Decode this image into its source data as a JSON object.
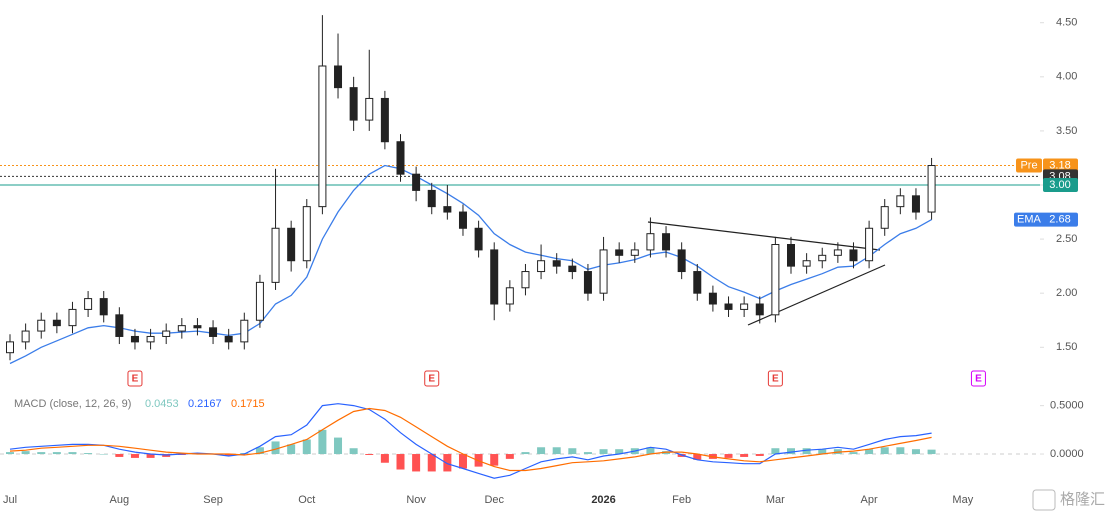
{
  "chart_data": [
    {
      "type": "candlestick",
      "categories": [
        "Jul",
        null,
        null,
        null,
        null,
        null,
        null,
        "Aug",
        null,
        null,
        null,
        null,
        null,
        "Sep",
        null,
        null,
        null,
        null,
        null,
        "Oct",
        null,
        null,
        null,
        null,
        null,
        null,
        "Nov",
        null,
        null,
        null,
        null,
        "Dec",
        null,
        null,
        null,
        null,
        null,
        null,
        "2026",
        null,
        null,
        null,
        null,
        "Feb",
        null,
        null,
        null,
        null,
        null,
        "Mar",
        null,
        null,
        null,
        null,
        null,
        "Apr",
        null,
        null,
        null,
        null,
        null,
        "May",
        null
      ],
      "open": [
        1.45,
        1.55,
        1.65,
        1.75,
        1.7,
        1.85,
        1.95,
        1.8,
        1.6,
        1.55,
        1.6,
        1.65,
        1.7,
        1.68,
        1.6,
        1.55,
        1.75,
        2.1,
        2.6,
        2.3,
        2.8,
        4.1,
        3.9,
        3.6,
        3.8,
        3.4,
        3.1,
        2.95,
        2.8,
        2.75,
        2.6,
        2.4,
        1.9,
        2.05,
        2.2,
        2.3,
        2.25,
        2.2,
        2.0,
        2.4,
        2.35,
        2.4,
        2.55,
        2.4,
        2.2,
        2.0,
        1.9,
        1.85,
        1.9,
        1.8,
        2.45,
        2.25,
        2.3,
        2.35,
        2.4,
        2.3,
        2.6,
        2.8,
        2.9,
        2.75,
        null,
        null,
        null
      ],
      "high": [
        1.62,
        1.72,
        1.82,
        1.82,
        1.92,
        2.02,
        2.02,
        1.87,
        1.67,
        1.67,
        1.72,
        1.77,
        1.77,
        1.75,
        1.67,
        1.82,
        2.17,
        3.15,
        2.67,
        2.87,
        4.57,
        4.4,
        4.0,
        4.25,
        3.87,
        3.47,
        3.17,
        3.02,
        3.0,
        2.82,
        2.67,
        2.47,
        2.12,
        2.27,
        2.45,
        2.37,
        2.32,
        2.27,
        2.52,
        2.47,
        2.47,
        2.7,
        2.62,
        2.47,
        2.27,
        2.07,
        1.97,
        1.97,
        1.97,
        2.52,
        2.52,
        2.37,
        2.42,
        2.47,
        2.47,
        2.67,
        2.87,
        2.97,
        2.97,
        3.25,
        null,
        null,
        null
      ],
      "low": [
        1.38,
        1.48,
        1.58,
        1.63,
        1.63,
        1.78,
        1.73,
        1.53,
        1.48,
        1.48,
        1.53,
        1.58,
        1.61,
        1.53,
        1.48,
        1.48,
        1.68,
        2.03,
        2.2,
        2.23,
        2.73,
        3.8,
        3.5,
        3.5,
        3.33,
        3.03,
        2.85,
        2.73,
        2.68,
        2.53,
        2.33,
        1.75,
        1.83,
        1.98,
        2.13,
        2.18,
        2.13,
        1.93,
        1.93,
        2.28,
        2.28,
        2.33,
        2.33,
        2.13,
        1.93,
        1.83,
        1.78,
        1.78,
        1.72,
        1.73,
        2.18,
        2.18,
        2.23,
        2.28,
        2.23,
        2.23,
        2.53,
        2.73,
        2.68,
        2.68,
        null,
        null,
        null
      ],
      "close": [
        1.55,
        1.65,
        1.75,
        1.7,
        1.85,
        1.95,
        1.8,
        1.6,
        1.55,
        1.6,
        1.65,
        1.7,
        1.68,
        1.6,
        1.55,
        1.75,
        2.1,
        2.6,
        2.3,
        2.8,
        4.1,
        3.9,
        3.6,
        3.8,
        3.4,
        3.1,
        2.95,
        2.8,
        2.75,
        2.6,
        2.4,
        1.9,
        2.05,
        2.2,
        2.3,
        2.25,
        2.2,
        2.0,
        2.4,
        2.35,
        2.4,
        2.55,
        2.4,
        2.2,
        2.0,
        1.9,
        1.85,
        1.9,
        1.8,
        2.45,
        2.25,
        2.3,
        2.35,
        2.4,
        2.3,
        2.6,
        2.8,
        2.9,
        2.75,
        3.18,
        null,
        null,
        null
      ],
      "up_color": "#ffffff",
      "down_color": "#222222",
      "ema": {
        "name": "EMA",
        "color": "#3b7de9",
        "values": [
          1.35,
          1.42,
          1.5,
          1.56,
          1.62,
          1.68,
          1.7,
          1.68,
          1.65,
          1.63,
          1.63,
          1.64,
          1.65,
          1.63,
          1.61,
          1.63,
          1.72,
          1.9,
          1.98,
          2.15,
          2.5,
          2.75,
          2.95,
          3.1,
          3.18,
          3.15,
          3.08,
          3.0,
          2.92,
          2.83,
          2.72,
          2.55,
          2.45,
          2.38,
          2.35,
          2.32,
          2.3,
          2.22,
          2.26,
          2.28,
          2.31,
          2.36,
          2.38,
          2.33,
          2.25,
          2.15,
          2.06,
          2.01,
          1.95,
          2.02,
          2.08,
          2.13,
          2.18,
          2.24,
          2.25,
          2.34,
          2.45,
          2.55,
          2.6,
          2.68,
          null,
          null,
          null
        ]
      },
      "price_lines": [
        {
          "name": "Pre",
          "value": 3.18,
          "color": "#f7931a"
        },
        {
          "value": 3.08,
          "color": "#333333"
        },
        {
          "value": 3.0,
          "label": "3.00",
          "color": "#1a9c8c"
        }
      ],
      "events": [
        {
          "label": "E",
          "at": 8,
          "color": "#e53935"
        },
        {
          "label": "E",
          "at": 27,
          "color": "#e53935"
        },
        {
          "label": "E",
          "at": 49,
          "color": "#e53935"
        },
        {
          "label": "E",
          "at": 62,
          "color": "#d500f9"
        }
      ],
      "ylim": [
        1.29,
        4.71
      ],
      "yticks": [
        {
          "value": 1.5,
          "label": "1.50"
        },
        {
          "value": 2,
          "label": "2.00"
        },
        {
          "value": 2.5,
          "label": "2.50"
        },
        {
          "value": 3,
          "label": "3.00"
        },
        {
          "value": 3.5,
          "label": "3.50"
        },
        {
          "value": 4,
          "label": "4.00"
        },
        {
          "value": 4.5,
          "label": "4.50"
        }
      ],
      "watermark": "格隆汇"
    },
    {
      "type": "macd",
      "title": "MACD (close, 12, 26, 9)",
      "series": [
        {
          "color": "#7fc8c0",
          "negative_color": "#ff5252",
          "values": [
            0.02,
            0.03,
            0.02,
            0.02,
            0.02,
            0.01,
            0,
            -0.03,
            -0.04,
            -0.04,
            -0.03,
            -0.01,
            0.01,
            0,
            -0.02,
            0.01,
            0.07,
            0.13,
            0.1,
            0.15,
            0.25,
            0.17,
            0.06,
            -0.01,
            -0.09,
            -0.16,
            -0.18,
            -0.18,
            -0.18,
            -0.15,
            -0.13,
            -0.12,
            -0.05,
            0.02,
            0.07,
            0.07,
            0.06,
            0.02,
            0.05,
            0.05,
            0.06,
            0.07,
            0.03,
            -0.03,
            -0.06,
            -0.05,
            -0.04,
            -0.03,
            -0.02,
            0.06,
            0.06,
            0.06,
            0.05,
            0.05,
            0.02,
            0.05,
            0.07,
            0.07,
            0.05,
            0.0453
          ]
        },
        {
          "color": "#2962ff",
          "values": [
            0.05,
            0.07,
            0.08,
            0.09,
            0.1,
            0.1,
            0.09,
            0.05,
            0.02,
            0,
            -0.01,
            0,
            0.01,
            0,
            -0.02,
            0,
            0.08,
            0.18,
            0.2,
            0.3,
            0.5,
            0.52,
            0.5,
            0.46,
            0.36,
            0.22,
            0.1,
            0,
            -0.1,
            -0.15,
            -0.2,
            -0.25,
            -0.22,
            -0.15,
            -0.08,
            -0.05,
            -0.03,
            -0.06,
            -0.02,
            0,
            0.03,
            0.07,
            0.05,
            -0.01,
            -0.06,
            -0.08,
            -0.09,
            -0.1,
            -0.1,
            0,
            0.02,
            0.04,
            0.05,
            0.07,
            0.05,
            0.1,
            0.15,
            0.18,
            0.19,
            0.2167
          ]
        },
        {
          "color": "#ff6d00",
          "values": [
            0.03,
            0.04,
            0.06,
            0.07,
            0.08,
            0.09,
            0.09,
            0.08,
            0.06,
            0.04,
            0.02,
            0.01,
            0,
            0,
            0,
            -0.01,
            0.01,
            0.05,
            0.1,
            0.15,
            0.25,
            0.35,
            0.44,
            0.47,
            0.45,
            0.38,
            0.28,
            0.18,
            0.08,
            0,
            -0.07,
            -0.13,
            -0.17,
            -0.17,
            -0.15,
            -0.12,
            -0.09,
            -0.08,
            -0.07,
            -0.05,
            -0.03,
            0,
            0.02,
            0.02,
            0,
            -0.03,
            -0.05,
            -0.07,
            -0.08,
            -0.06,
            -0.04,
            -0.02,
            0,
            0.02,
            0.03,
            0.05,
            0.08,
            0.11,
            0.14,
            0.1715
          ]
        }
      ],
      "ylim": [
        -0.32,
        0.61
      ],
      "yticks": [
        {
          "value": 0,
          "label": "0.0000"
        },
        {
          "value": 0.5,
          "label": "0.5000"
        }
      ]
    }
  ]
}
